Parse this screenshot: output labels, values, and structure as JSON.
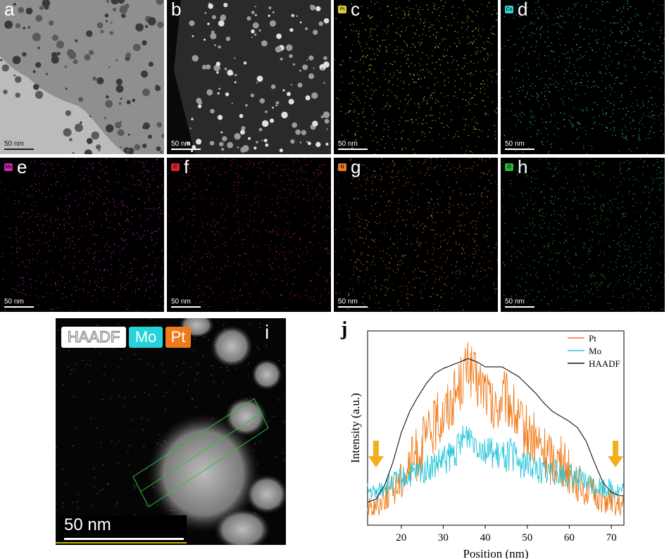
{
  "panels": [
    {
      "letter": "a",
      "element": "",
      "scale": "50 nm"
    },
    {
      "letter": "b",
      "element": "",
      "scale": "50 nm"
    },
    {
      "letter": "c",
      "element": "Pt",
      "scale": "50 nm",
      "color": "#d9cf3a"
    },
    {
      "letter": "d",
      "element": "Co",
      "scale": "50 nm",
      "color": "#31d0d6"
    },
    {
      "letter": "e",
      "element": "Mo",
      "scale": "50 nm",
      "color": "#c82ab5"
    },
    {
      "letter": "f",
      "element": "C",
      "scale": "50 nm",
      "color": "#d3222f"
    },
    {
      "letter": "g",
      "element": "N",
      "scale": "50 nm",
      "color": "#e07b24"
    },
    {
      "letter": "h",
      "element": "O",
      "scale": "50 nm",
      "color": "#25b33a"
    }
  ],
  "panel_i": {
    "letter": "i",
    "legend": [
      "HAADF",
      "Mo",
      "Pt"
    ],
    "scale": "50 nm",
    "colors": {
      "mo": "#26d3d8",
      "pt": "#f07a1a"
    }
  },
  "chart_data": {
    "type": "line",
    "panel_letter": "j",
    "xlabel": "Position (nm)",
    "ylabel": "Intensity (a.u.)",
    "xlim": [
      12,
      73
    ],
    "xticks": [
      20,
      30,
      40,
      50,
      60,
      70
    ],
    "legend_position": "top-right",
    "series": [
      {
        "name": "Pt",
        "color": "#f07a1a",
        "x": [
          12,
          14,
          16,
          18,
          20,
          22,
          24,
          26,
          28,
          30,
          32,
          34,
          36,
          38,
          40,
          42,
          44,
          46,
          48,
          50,
          52,
          54,
          56,
          58,
          60,
          62,
          64,
          66,
          68,
          70,
          72,
          73
        ],
        "y": [
          0.05,
          0.05,
          0.12,
          0.15,
          0.22,
          0.3,
          0.38,
          0.46,
          0.55,
          0.62,
          0.7,
          0.8,
          0.92,
          0.8,
          0.78,
          0.6,
          0.72,
          0.68,
          0.55,
          0.5,
          0.45,
          0.38,
          0.35,
          0.32,
          0.28,
          0.2,
          0.16,
          0.12,
          0.1,
          0.08,
          0.05,
          0.05
        ]
      },
      {
        "name": "Mo",
        "color": "#26c6da",
        "x": [
          12,
          14,
          16,
          18,
          20,
          22,
          24,
          26,
          28,
          30,
          32,
          34,
          36,
          38,
          40,
          42,
          44,
          46,
          48,
          50,
          52,
          54,
          56,
          58,
          60,
          62,
          64,
          66,
          68,
          70,
          72,
          73
        ],
        "y": [
          0.15,
          0.13,
          0.18,
          0.2,
          0.22,
          0.24,
          0.26,
          0.28,
          0.3,
          0.33,
          0.36,
          0.42,
          0.5,
          0.45,
          0.4,
          0.36,
          0.34,
          0.38,
          0.32,
          0.3,
          0.29,
          0.27,
          0.26,
          0.25,
          0.24,
          0.22,
          0.2,
          0.18,
          0.17,
          0.16,
          0.15,
          0.15
        ]
      },
      {
        "name": "HAADF",
        "color": "#111111",
        "x": [
          12,
          14,
          16,
          18,
          20,
          22,
          24,
          26,
          28,
          30,
          32,
          34,
          36,
          38,
          40,
          42,
          44,
          46,
          48,
          50,
          52,
          54,
          56,
          58,
          60,
          62,
          64,
          66,
          68,
          70,
          72,
          73
        ],
        "y": [
          0.08,
          0.1,
          0.18,
          0.32,
          0.5,
          0.63,
          0.72,
          0.8,
          0.86,
          0.89,
          0.91,
          0.93,
          0.95,
          0.93,
          0.9,
          0.9,
          0.9,
          0.87,
          0.84,
          0.79,
          0.74,
          0.68,
          0.63,
          0.6,
          0.57,
          0.53,
          0.45,
          0.32,
          0.2,
          0.14,
          0.12,
          0.12
        ]
      }
    ],
    "annotations": [
      "down-arrow-left",
      "down-arrow-right"
    ]
  }
}
